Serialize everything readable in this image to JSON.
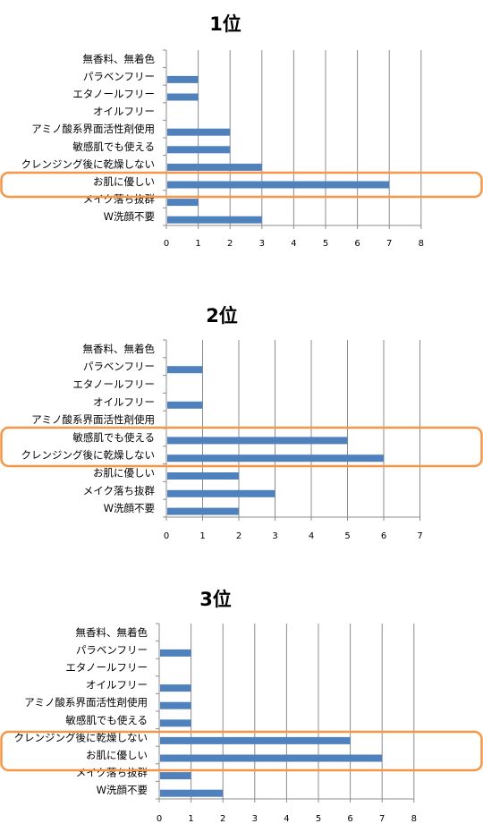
{
  "colors": {
    "bar": "#4F81BD",
    "grid": "#8C8C8C",
    "axis": "#8C8C8C",
    "highlight": "#F79646"
  },
  "chart_data": [
    {
      "type": "bar",
      "orientation": "horizontal",
      "title": "1位",
      "categories": [
        "無香料、無着色",
        "パラベンフリー",
        "エタノールフリー",
        "オイルフリー",
        "アミノ酸系界面活性剤使用",
        "敏感肌でも使える",
        "クレンジング後に乾燥しない",
        "お肌に優しい",
        "メイク落ち抜群",
        "W洗顔不要"
      ],
      "values": [
        0,
        1,
        1,
        0,
        2,
        2,
        3,
        7,
        1,
        3
      ],
      "xlim": [
        0,
        8
      ],
      "xticks": [
        "0",
        "1",
        "2",
        "3",
        "4",
        "5",
        "6",
        "7",
        "8"
      ],
      "grid": true,
      "highlighted_categories": [
        "お肌に優しい"
      ]
    },
    {
      "type": "bar",
      "orientation": "horizontal",
      "title": "2位",
      "categories": [
        "無香料、無着色",
        "パラベンフリー",
        "エタノールフリー",
        "オイルフリー",
        "アミノ酸系界面活性剤使用",
        "敏感肌でも使える",
        "クレンジング後に乾燥しない",
        "お肌に優しい",
        "メイク落ち抜群",
        "W洗顔不要"
      ],
      "values": [
        0,
        1,
        0,
        1,
        0,
        5,
        6,
        2,
        3,
        2
      ],
      "xlim": [
        0,
        7
      ],
      "xticks": [
        "0",
        "1",
        "2",
        "3",
        "4",
        "5",
        "6",
        "7"
      ],
      "grid": true,
      "highlighted_categories": [
        "敏感肌でも使える",
        "クレンジング後に乾燥しない"
      ]
    },
    {
      "type": "bar",
      "orientation": "horizontal",
      "title": "3位",
      "categories": [
        "無香料、無着色",
        "パラベンフリー",
        "エタノールフリー",
        "オイルフリー",
        "アミノ酸系界面活性剤使用",
        "敏感肌でも使える",
        "クレンジング後に乾燥しない",
        "お肌に優しい",
        "メイク落ち抜群",
        "W洗顔不要"
      ],
      "values": [
        0,
        1,
        0,
        1,
        1,
        1,
        6,
        7,
        1,
        2
      ],
      "xlim": [
        0,
        8
      ],
      "xticks": [
        "0",
        "1",
        "2",
        "3",
        "4",
        "5",
        "6",
        "7",
        "8"
      ],
      "grid": true,
      "highlighted_categories": [
        "クレンジング後に乾燥しない",
        "お肌に優しい"
      ]
    }
  ]
}
